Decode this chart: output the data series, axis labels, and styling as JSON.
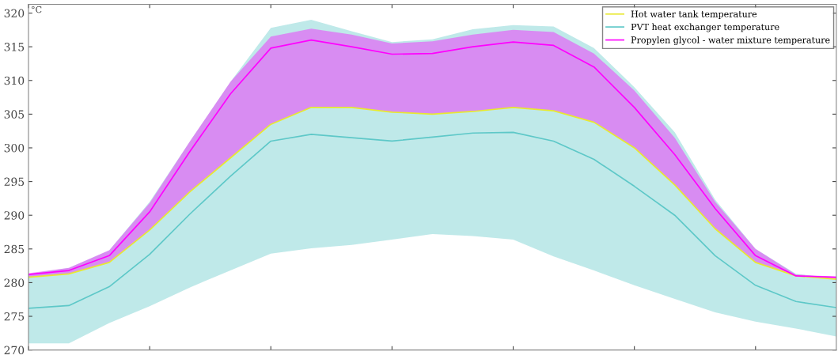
{
  "chart_data": {
    "type": "line",
    "ylabel": "°C",
    "categories": [
      null,
      null,
      null,
      null,
      null,
      null,
      null,
      null,
      null,
      null,
      null,
      null,
      null,
      null,
      null,
      null,
      null,
      null,
      null,
      null,
      null
    ],
    "series": [
      {
        "name": "Hot water tank temperature",
        "color": "#e8e830",
        "values": [
          280.8,
          281.3,
          283,
          287.8,
          293.5,
          298.5,
          303.5,
          306,
          306,
          305.3,
          305,
          305.4,
          306,
          305.5,
          303.8,
          300,
          294.5,
          288,
          283,
          281,
          280.5
        ]
      },
      {
        "name": "PVT heat exchanger temperature",
        "color": "#5ec8c8",
        "values": [
          276.2,
          276.6,
          279.4,
          284.2,
          290.2,
          295.8,
          301,
          302,
          301.5,
          301,
          301.6,
          302.2,
          302.3,
          301,
          298.3,
          294.3,
          290,
          284,
          279.6,
          277.2,
          276.3
        ],
        "lower": [
          271,
          271,
          274,
          276.5,
          279.3,
          281.8,
          284.3,
          285.1,
          285.6,
          286.4,
          287.2,
          286.9,
          286.4,
          283.9,
          281.8,
          279.6,
          277.6,
          275.6,
          274.2,
          273.2,
          272
        ],
        "upper": [
          281.3,
          282.2,
          284.8,
          292,
          301,
          309.8,
          317.8,
          319,
          317.3,
          315.7,
          316.1,
          317.6,
          318.2,
          318,
          314.8,
          309,
          302.3,
          292.3,
          285,
          281.3,
          280.6
        ]
      },
      {
        "name": "Propylen glycol - water mixture temperature",
        "color": "#ff00ff",
        "values": [
          281.2,
          281.8,
          284,
          290.5,
          299.5,
          308,
          314.8,
          316,
          315,
          313.9,
          314,
          315,
          315.7,
          315.2,
          312,
          306,
          299,
          291,
          284,
          281,
          280.8
        ],
        "lower": [
          280.8,
          281.3,
          283,
          287.8,
          293.5,
          298.5,
          303.5,
          306,
          306,
          305.3,
          305,
          305.4,
          306,
          305.5,
          303.8,
          300,
          294.5,
          288,
          283,
          281,
          280.5
        ],
        "upper": [
          281.4,
          282.2,
          284.8,
          291.8,
          301,
          309.8,
          316.5,
          317.7,
          316.8,
          315.5,
          315.8,
          316.8,
          317.5,
          317.2,
          314,
          308.5,
          301.5,
          292,
          285,
          281.2,
          280.9
        ]
      }
    ],
    "ylim": [
      270,
      321.3
    ],
    "yticks": [
      270,
      275,
      280,
      285,
      290,
      295,
      300,
      305,
      310,
      315,
      320
    ],
    "grid": false,
    "legend": "top right",
    "marker": "none",
    "line_style": "solid"
  }
}
